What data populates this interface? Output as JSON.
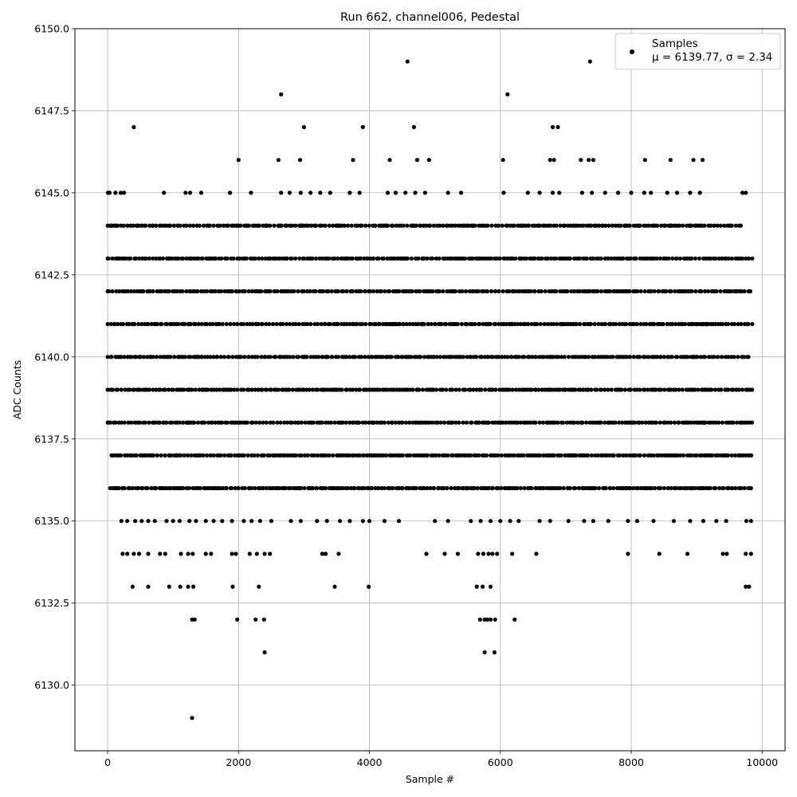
{
  "chart_data": {
    "type": "scatter",
    "title": "Run 662, channel006, Pedestal",
    "xlabel": "Sample #",
    "ylabel": "ADC Counts",
    "xlim": [
      -500,
      10350
    ],
    "ylim": [
      6128,
      6150
    ],
    "x_ticks": [
      0,
      2000,
      4000,
      6000,
      8000,
      10000
    ],
    "x_tick_labels": [
      "0",
      "2000",
      "4000",
      "6000",
      "8000",
      "10000"
    ],
    "y_ticks": [
      6130.0,
      6132.5,
      6135.0,
      6137.5,
      6140.0,
      6142.5,
      6145.0,
      6147.5,
      6150.0
    ],
    "y_tick_labels": [
      "6130.0",
      "6132.5",
      "6135.0",
      "6137.5",
      "6140.0",
      "6142.5",
      "6145.0",
      "6147.5",
      "6150.0"
    ],
    "grid": true,
    "legend_position": "top-right",
    "marker_color": "#000000",
    "series": [
      {
        "name": "Samples",
        "legend_stats": "μ = 6139.77, σ = 2.34",
        "dense_levels": [
          {
            "y": 6138,
            "x_range": [
              0,
              9850
            ]
          },
          {
            "y": 6139,
            "x_range": [
              0,
              9850
            ]
          },
          {
            "y": 6140,
            "x_range": [
              0,
              9850
            ]
          },
          {
            "y": 6141,
            "x_range": [
              0,
              9850
            ]
          },
          {
            "y": 6142,
            "x_range": [
              0,
              9850
            ]
          },
          {
            "y": 6137,
            "x_range": [
              60,
              9850
            ]
          },
          {
            "y": 6143,
            "x_range": [
              0,
              9850
            ]
          },
          {
            "y": 6136,
            "x_range": [
              40,
              9850
            ]
          },
          {
            "y": 6144,
            "x_range": [
              0,
              9700
            ]
          }
        ],
        "points": [
          [
            5,
            6145
          ],
          [
            30,
            6145
          ],
          [
            120,
            6145
          ],
          [
            200,
            6145
          ],
          [
            250,
            6145
          ],
          [
            860,
            6145
          ],
          [
            1190,
            6145
          ],
          [
            1260,
            6145
          ],
          [
            1430,
            6145
          ],
          [
            1870,
            6145
          ],
          [
            2190,
            6145
          ],
          [
            2650,
            6145
          ],
          [
            2780,
            6145
          ],
          [
            2950,
            6145
          ],
          [
            3100,
            6145
          ],
          [
            3250,
            6145
          ],
          [
            3400,
            6145
          ],
          [
            3700,
            6145
          ],
          [
            3850,
            6145
          ],
          [
            4280,
            6145
          ],
          [
            4400,
            6145
          ],
          [
            4550,
            6145
          ],
          [
            4700,
            6145
          ],
          [
            4850,
            6145
          ],
          [
            5200,
            6145
          ],
          [
            5400,
            6145
          ],
          [
            6050,
            6145
          ],
          [
            6420,
            6145
          ],
          [
            6600,
            6145
          ],
          [
            6800,
            6145
          ],
          [
            6900,
            6145
          ],
          [
            7250,
            6145
          ],
          [
            7400,
            6145
          ],
          [
            7600,
            6145
          ],
          [
            7800,
            6145
          ],
          [
            8000,
            6145
          ],
          [
            8200,
            6145
          ],
          [
            8300,
            6145
          ],
          [
            8550,
            6145
          ],
          [
            8700,
            6145
          ],
          [
            8900,
            6145
          ],
          [
            9050,
            6145
          ],
          [
            9700,
            6145
          ],
          [
            9750,
            6145
          ],
          [
            400,
            6147
          ],
          [
            2650,
            6148
          ],
          [
            3000,
            6147
          ],
          [
            3900,
            6147
          ],
          [
            4580,
            6149
          ],
          [
            4680,
            6147
          ],
          [
            6110,
            6148
          ],
          [
            6800,
            6147
          ],
          [
            6880,
            6147
          ],
          [
            7370,
            6149
          ],
          [
            2000,
            6146
          ],
          [
            2610,
            6146
          ],
          [
            2940,
            6146
          ],
          [
            3750,
            6146
          ],
          [
            4310,
            6146
          ],
          [
            4730,
            6146
          ],
          [
            4910,
            6146
          ],
          [
            6040,
            6146
          ],
          [
            6760,
            6146
          ],
          [
            6820,
            6146
          ],
          [
            7230,
            6146
          ],
          [
            7350,
            6146
          ],
          [
            7420,
            6146
          ],
          [
            8210,
            6146
          ],
          [
            8600,
            6146
          ],
          [
            8950,
            6146
          ],
          [
            9090,
            6146
          ],
          [
            210,
            6135
          ],
          [
            300,
            6135
          ],
          [
            420,
            6135
          ],
          [
            520,
            6135
          ],
          [
            620,
            6135
          ],
          [
            720,
            6135
          ],
          [
            900,
            6135
          ],
          [
            1000,
            6135
          ],
          [
            1100,
            6135
          ],
          [
            1250,
            6135
          ],
          [
            1350,
            6135
          ],
          [
            1500,
            6135
          ],
          [
            1620,
            6135
          ],
          [
            1750,
            6135
          ],
          [
            1900,
            6135
          ],
          [
            2080,
            6135
          ],
          [
            2200,
            6135
          ],
          [
            2330,
            6135
          ],
          [
            2500,
            6135
          ],
          [
            2800,
            6135
          ],
          [
            2950,
            6135
          ],
          [
            3200,
            6135
          ],
          [
            3350,
            6135
          ],
          [
            3550,
            6135
          ],
          [
            3700,
            6135
          ],
          [
            3900,
            6135
          ],
          [
            4000,
            6135
          ],
          [
            4230,
            6135
          ],
          [
            4450,
            6135
          ],
          [
            5000,
            6135
          ],
          [
            5200,
            6135
          ],
          [
            5550,
            6135
          ],
          [
            5700,
            6135
          ],
          [
            5850,
            6135
          ],
          [
            6000,
            6135
          ],
          [
            6150,
            6135
          ],
          [
            6280,
            6135
          ],
          [
            6600,
            6135
          ],
          [
            6760,
            6135
          ],
          [
            7040,
            6135
          ],
          [
            7280,
            6135
          ],
          [
            7420,
            6135
          ],
          [
            7650,
            6135
          ],
          [
            7950,
            6135
          ],
          [
            8090,
            6135
          ],
          [
            8340,
            6135
          ],
          [
            8650,
            6135
          ],
          [
            8900,
            6135
          ],
          [
            9100,
            6135
          ],
          [
            9300,
            6135
          ],
          [
            9450,
            6135
          ],
          [
            9760,
            6135
          ],
          [
            9830,
            6135
          ],
          [
            230,
            6134
          ],
          [
            300,
            6134
          ],
          [
            400,
            6134
          ],
          [
            480,
            6134
          ],
          [
            620,
            6134
          ],
          [
            800,
            6134
          ],
          [
            880,
            6134
          ],
          [
            1120,
            6134
          ],
          [
            1230,
            6134
          ],
          [
            1300,
            6134
          ],
          [
            1500,
            6134
          ],
          [
            1580,
            6134
          ],
          [
            1900,
            6134
          ],
          [
            1960,
            6134
          ],
          [
            2170,
            6134
          ],
          [
            2280,
            6134
          ],
          [
            2400,
            6134
          ],
          [
            2480,
            6134
          ],
          [
            3280,
            6134
          ],
          [
            3330,
            6134
          ],
          [
            3530,
            6134
          ],
          [
            4870,
            6134
          ],
          [
            5150,
            6134
          ],
          [
            5350,
            6134
          ],
          [
            5660,
            6134
          ],
          [
            5740,
            6134
          ],
          [
            5820,
            6134
          ],
          [
            5880,
            6134
          ],
          [
            5950,
            6134
          ],
          [
            6180,
            6134
          ],
          [
            6550,
            6134
          ],
          [
            7950,
            6134
          ],
          [
            8430,
            6134
          ],
          [
            8860,
            6134
          ],
          [
            9400,
            6134
          ],
          [
            9460,
            6134
          ],
          [
            9750,
            6134
          ],
          [
            9830,
            6134
          ],
          [
            380,
            6133
          ],
          [
            620,
            6133
          ],
          [
            940,
            6133
          ],
          [
            1110,
            6133
          ],
          [
            1230,
            6133
          ],
          [
            1310,
            6133
          ],
          [
            1910,
            6133
          ],
          [
            2310,
            6133
          ],
          [
            3470,
            6133
          ],
          [
            3990,
            6133
          ],
          [
            5640,
            6133
          ],
          [
            5730,
            6133
          ],
          [
            5850,
            6133
          ],
          [
            9750,
            6133
          ],
          [
            9800,
            6133
          ],
          [
            1290,
            6132
          ],
          [
            1330,
            6132
          ],
          [
            1980,
            6132
          ],
          [
            2260,
            6132
          ],
          [
            2390,
            6132
          ],
          [
            5690,
            6132
          ],
          [
            5760,
            6132
          ],
          [
            5800,
            6132
          ],
          [
            5850,
            6132
          ],
          [
            5920,
            6132
          ],
          [
            6220,
            6132
          ],
          [
            2400,
            6131
          ],
          [
            5760,
            6131
          ],
          [
            5910,
            6131
          ],
          [
            1290,
            6129
          ]
        ]
      }
    ]
  }
}
